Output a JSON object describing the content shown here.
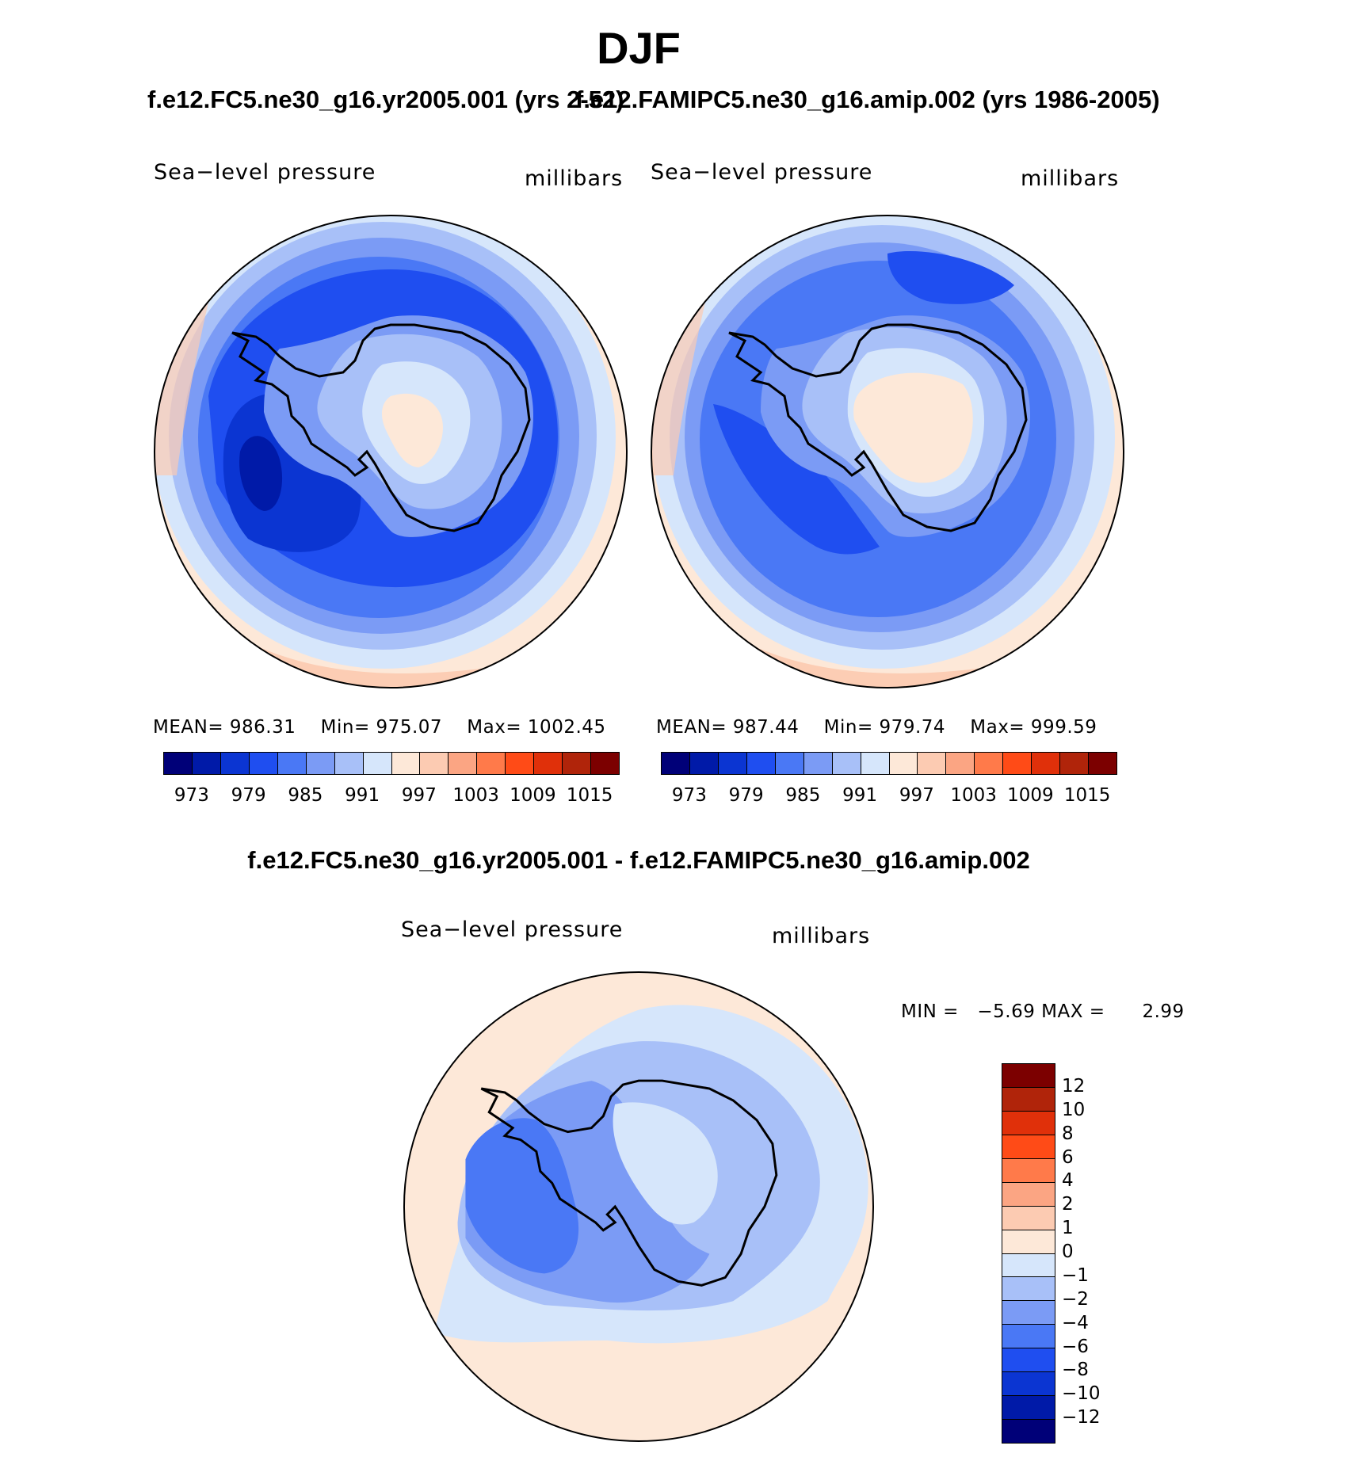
{
  "season": "DJF",
  "title_left": "f.e12.FC5.ne30_g16.yr2005.001 (yrs 2-52)",
  "title_right": "f.e12.FAMIPC5.ne30_g16.amip.002 (yrs 1986-2005)",
  "diff_title": "f.e12.FC5.ne30_g16.yr2005.001 - f.e12.FAMIPC5.ne30_g16.amip.002",
  "colors": {
    "abs_levels": [
      "#000078",
      "#001aa8",
      "#0b35d2",
      "#1f4ef0",
      "#4a78f5",
      "#7b9bf5",
      "#a8c0f8",
      "#d6e6fb",
      "#fde8d8",
      "#fccbb2",
      "#fba583",
      "#ff7a4a",
      "#ff4b17",
      "#e0300a",
      "#b0240a",
      "#7c0000"
    ],
    "diff_levels": [
      "#000078",
      "#001aa8",
      "#0b35d2",
      "#1f4ef0",
      "#4a78f5",
      "#7b9bf5",
      "#a8c0f8",
      "#d6e6fb",
      "#fde8d8",
      "#fccbb2",
      "#fba583",
      "#ff7a4a",
      "#ff4b17",
      "#e0300a",
      "#b0240a",
      "#7c0000"
    ]
  },
  "panels": {
    "left": {
      "variable": "Sea−level pressure",
      "units": "millibars",
      "mean_label": "MEAN=",
      "mean": "986.31",
      "min_label": "Min=",
      "min": "975.07",
      "max_label": "Max=",
      "max": "1002.45",
      "colorbar_ticks": [
        "973",
        "979",
        "985",
        "991",
        "997",
        "1003",
        "1009",
        "1015"
      ]
    },
    "right": {
      "variable": "Sea−level pressure",
      "units": "millibars",
      "mean_label": "MEAN=",
      "mean": "987.44",
      "min_label": "Min=",
      "min": "979.74",
      "max_label": "Max=",
      "max": "999.59",
      "colorbar_ticks": [
        "973",
        "979",
        "985",
        "991",
        "997",
        "1003",
        "1009",
        "1015"
      ]
    },
    "diff": {
      "variable": "Sea−level pressure",
      "units": "millibars",
      "min_label": "MIN =",
      "min": "−5.69",
      "max_label": "MAX =",
      "max": "2.99",
      "colorbar_ticks": [
        "12",
        "10",
        "8",
        "6",
        "4",
        "2",
        "1",
        "0",
        "−1",
        "−2",
        "−4",
        "−6",
        "−8",
        "−10",
        "−12"
      ]
    }
  },
  "chart_data": [
    {
      "type": "heatmap",
      "title": "f.e12.FC5.ne30_g16.yr2005.001 (yrs 2-52)",
      "subtitle": "DJF Sea-level pressure",
      "units": "millibars",
      "projection": "south polar stereographic",
      "stats": {
        "mean": 986.31,
        "min": 975.07,
        "max": 1002.45
      },
      "contour_levels": [
        973,
        976,
        979,
        982,
        985,
        988,
        991,
        994,
        997,
        1000,
        1003,
        1006,
        1009,
        1012,
        1015
      ]
    },
    {
      "type": "heatmap",
      "title": "f.e12.FAMIPC5.ne30_g16.amip.002 (yrs 1986-2005)",
      "subtitle": "DJF Sea-level pressure",
      "units": "millibars",
      "projection": "south polar stereographic",
      "stats": {
        "mean": 987.44,
        "min": 979.74,
        "max": 999.59
      },
      "contour_levels": [
        973,
        976,
        979,
        982,
        985,
        988,
        991,
        994,
        997,
        1000,
        1003,
        1006,
        1009,
        1012,
        1015
      ]
    },
    {
      "type": "heatmap",
      "title": "f.e12.FC5.ne30_g16.yr2005.001 - f.e12.FAMIPC5.ne30_g16.amip.002",
      "subtitle": "DJF Sea-level pressure difference",
      "units": "millibars",
      "projection": "south polar stereographic",
      "stats": {
        "min": -5.69,
        "max": 2.99
      },
      "contour_levels": [
        -12,
        -10,
        -8,
        -6,
        -4,
        -2,
        -1,
        0,
        1,
        2,
        4,
        6,
        8,
        10,
        12
      ]
    }
  ]
}
